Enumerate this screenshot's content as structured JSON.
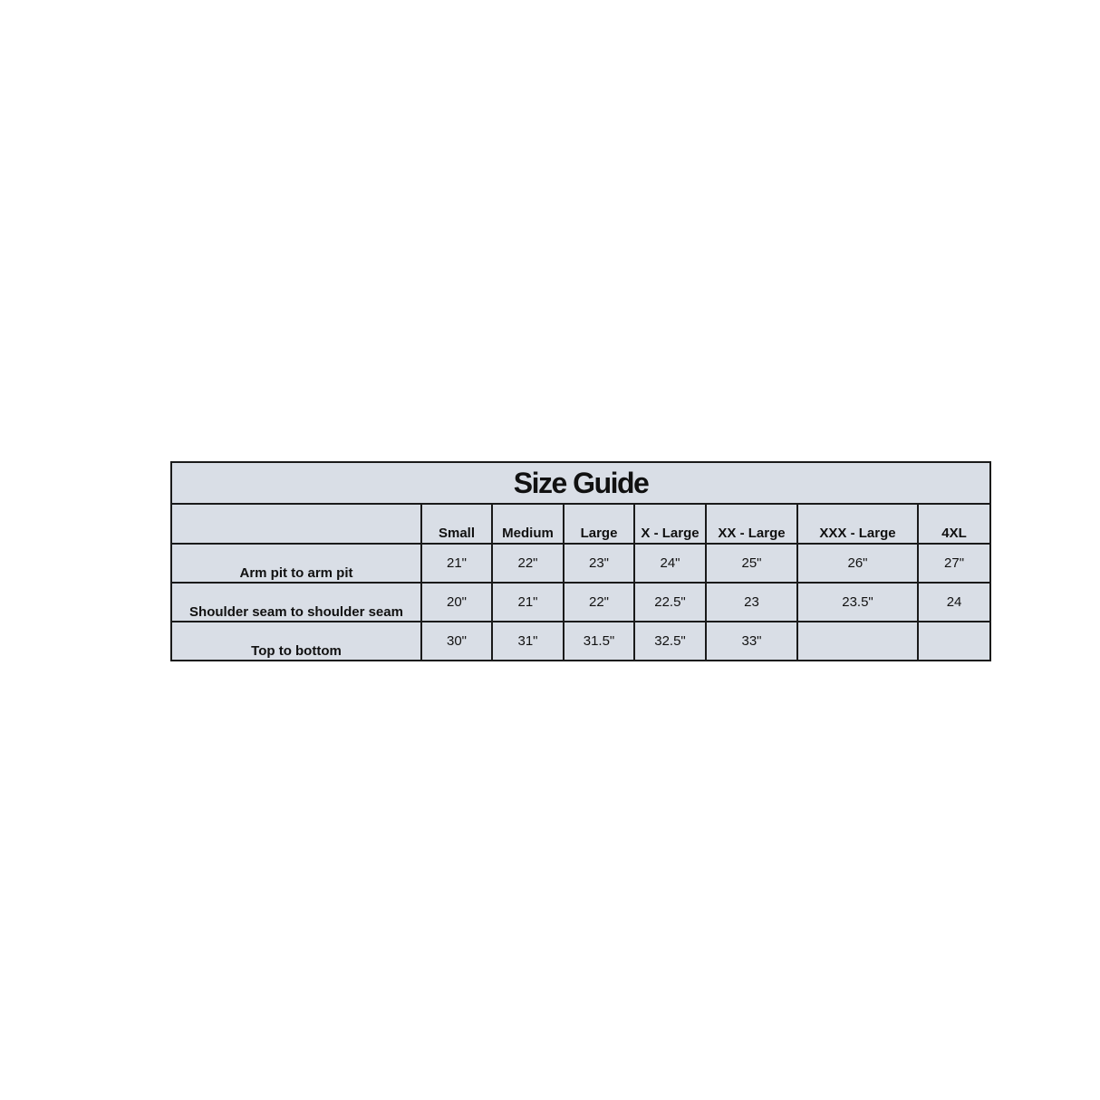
{
  "table": {
    "title": "Size Guide",
    "columns": [
      "",
      "Small",
      "Medium",
      "Large",
      "X - Large",
      "XX - Large",
      "XXX - Large",
      "4XL"
    ],
    "rows": [
      {
        "label": "Arm pit to arm pit",
        "values": [
          "21\"",
          "22\"",
          "23\"",
          "24\"",
          "25\"",
          "26\"",
          "27\""
        ]
      },
      {
        "label": "Shoulder seam to shoulder seam",
        "values": [
          "20\"",
          "21\"",
          "22\"",
          "22.5\"",
          "23",
          "23.5\"",
          "24"
        ]
      },
      {
        "label": "Top to bottom",
        "values": [
          "30\"",
          "31\"",
          "31.5\"",
          "32.5\"",
          "33\"",
          "",
          ""
        ]
      }
    ],
    "colors": {
      "background": "#d9dee6",
      "border": "#1a1a1a"
    }
  }
}
